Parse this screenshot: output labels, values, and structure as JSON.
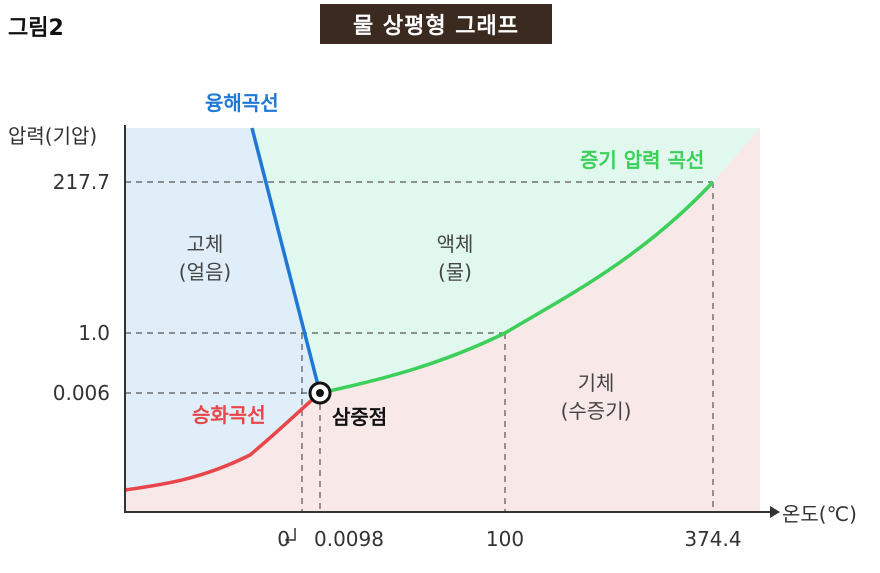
{
  "figure_label": "그림2",
  "title": "물 상평형 그래프",
  "chart_data": {
    "type": "phase-diagram",
    "xlabel": "온도(℃)",
    "ylabel": "압력(기압)",
    "x_ticks": [
      "0",
      "0.0098",
      "100",
      "374.4"
    ],
    "y_ticks": [
      "217.7",
      "1.0",
      "0.006"
    ],
    "colors": {
      "solid_region": "#dfeef8",
      "liquid_region": "#e0f8ee",
      "gas_region": "#f8e8e8",
      "melting_curve": "#1f78d6",
      "vaporization_curve": "#3ccf5a",
      "sublimation_curve": "#e8464a"
    },
    "curves": [
      {
        "name": "융해곡선",
        "color": "#1f78d6"
      },
      {
        "name": "증기 압력 곡선",
        "color": "#3ccf5a"
      },
      {
        "name": "승화곡선",
        "color": "#e8464a"
      }
    ],
    "regions": [
      {
        "line1": "고체",
        "line2": "(얼음)"
      },
      {
        "line1": "액체",
        "line2": "(물)"
      },
      {
        "line1": "기체",
        "line2": "(수증기)"
      }
    ],
    "triple_point": {
      "label": "삼중점",
      "temperature": 0.0098,
      "pressure": 0.006
    },
    "critical_point": {
      "temperature": 374.4,
      "pressure": 217.7
    },
    "normal_boiling_point": {
      "temperature": 100,
      "pressure": 1.0
    },
    "normal_melting_point": {
      "temperature": 0,
      "pressure": 1.0
    }
  }
}
